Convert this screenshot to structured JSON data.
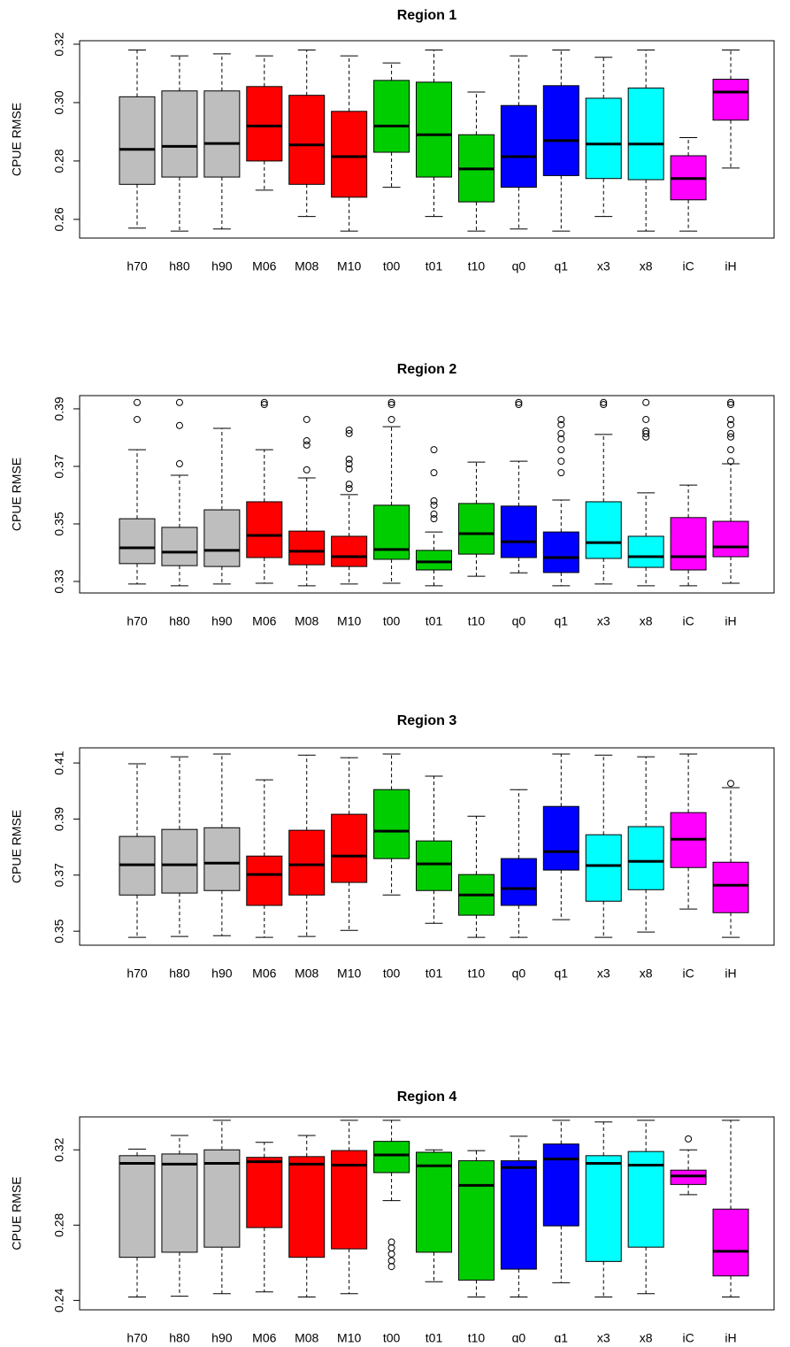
{
  "chart_data": [
    {
      "type": "box",
      "title": "Region 1",
      "ylabel": "CPUE RMSE",
      "categories": [
        "h70",
        "h80",
        "h90",
        "M06",
        "M08",
        "M10",
        "t00",
        "t01",
        "t10",
        "q0",
        "q1",
        "x3",
        "x8",
        "iC",
        "iH"
      ],
      "colors": [
        "#bebebe",
        "#bebebe",
        "#bebebe",
        "#ff0000",
        "#ff0000",
        "#ff0000",
        "#00cd00",
        "#00cd00",
        "#00cd00",
        "#0000ff",
        "#0000ff",
        "#00ffff",
        "#00ffff",
        "#ff00ff",
        "#ff00ff"
      ],
      "ylim": [
        0.2536,
        0.3212
      ],
      "yticks": [
        0.26,
        0.28,
        {
          "value": 0.3,
          "label": "0.30"
        },
        0.32
      ],
      "stats": [
        {
          "whislo": 0.257,
          "q1": 0.272,
          "med": 0.284,
          "q3": 0.302,
          "whishi": 0.318
        },
        {
          "whislo": 0.256,
          "q1": 0.2745,
          "med": 0.285,
          "q3": 0.304,
          "whishi": 0.316
        },
        {
          "whislo": 0.2567,
          "q1": 0.2745,
          "med": 0.286,
          "q3": 0.304,
          "whishi": 0.3167
        },
        {
          "whislo": 0.27,
          "q1": 0.28,
          "med": 0.292,
          "q3": 0.3055,
          "whishi": 0.316
        },
        {
          "whislo": 0.261,
          "q1": 0.272,
          "med": 0.2855,
          "q3": 0.3025,
          "whishi": 0.318
        },
        {
          "whislo": 0.256,
          "q1": 0.2676,
          "med": 0.2815,
          "q3": 0.297,
          "whishi": 0.316
        },
        {
          "whislo": 0.271,
          "q1": 0.283,
          "med": 0.292,
          "q3": 0.3076,
          "whishi": 0.3136
        },
        {
          "whislo": 0.261,
          "q1": 0.2745,
          "med": 0.289,
          "q3": 0.307,
          "whishi": 0.318
        },
        {
          "whislo": 0.256,
          "q1": 0.266,
          "med": 0.2773,
          "q3": 0.289,
          "whishi": 0.3036
        },
        {
          "whislo": 0.2567,
          "q1": 0.271,
          "med": 0.2815,
          "q3": 0.299,
          "whishi": 0.316
        },
        {
          "whislo": 0.256,
          "q1": 0.275,
          "med": 0.287,
          "q3": 0.3058,
          "whishi": 0.318
        },
        {
          "whislo": 0.261,
          "q1": 0.274,
          "med": 0.2858,
          "q3": 0.3015,
          "whishi": 0.3155
        },
        {
          "whislo": 0.256,
          "q1": 0.2736,
          "med": 0.2858,
          "q3": 0.305,
          "whishi": 0.318
        },
        {
          "whislo": 0.256,
          "q1": 0.2667,
          "med": 0.274,
          "q3": 0.2818,
          "whishi": 0.288
        },
        {
          "whislo": 0.2776,
          "q1": 0.294,
          "med": 0.3036,
          "q3": 0.308,
          "whishi": 0.318
        }
      ]
    },
    {
      "type": "box",
      "title": "Region 2",
      "ylabel": "CPUE RMSE",
      "categories": [
        "h70",
        "h80",
        "h90",
        "M06",
        "M08",
        "M10",
        "t00",
        "t01",
        "t10",
        "q0",
        "q1",
        "x3",
        "x8",
        "iC",
        "iH"
      ],
      "colors": [
        "#bebebe",
        "#bebebe",
        "#bebebe",
        "#ff0000",
        "#ff0000",
        "#ff0000",
        "#00cd00",
        "#00cd00",
        "#00cd00",
        "#0000ff",
        "#0000ff",
        "#00ffff",
        "#00ffff",
        "#ff00ff",
        "#ff00ff"
      ],
      "ylim": [
        0.326,
        0.3946
      ],
      "yticks": [
        0.33,
        0.35,
        0.37,
        0.39
      ],
      "stats": [
        {
          "whislo": 0.3291,
          "q1": 0.3362,
          "med": 0.3417,
          "q3": 0.3518,
          "whishi": 0.3758,
          "fliers": [
            0.3922,
            0.3863
          ]
        },
        {
          "whislo": 0.3285,
          "q1": 0.3355,
          "med": 0.3402,
          "q3": 0.3488,
          "whishi": 0.3669,
          "fliers": [
            0.3922,
            0.3842,
            0.3709
          ]
        },
        {
          "whislo": 0.3291,
          "q1": 0.3352,
          "med": 0.3408,
          "q3": 0.3549,
          "whishi": 0.3832
        },
        {
          "whislo": 0.3294,
          "q1": 0.3383,
          "med": 0.346,
          "q3": 0.3577,
          "whishi": 0.3758,
          "fliers": [
            0.3922,
            0.3915
          ]
        },
        {
          "whislo": 0.3285,
          "q1": 0.3358,
          "med": 0.3405,
          "q3": 0.3475,
          "whishi": 0.366,
          "fliers": [
            0.3688,
            0.3774,
            0.3789,
            0.3863
          ]
        },
        {
          "whislo": 0.3291,
          "q1": 0.3352,
          "med": 0.3386,
          "q3": 0.3457,
          "whishi": 0.3602,
          "fliers": [
            0.3814,
            0.3826,
            0.3725,
            0.3709,
            0.3691,
            0.3638,
            0.3623
          ]
        },
        {
          "whislo": 0.3294,
          "q1": 0.3377,
          "med": 0.3411,
          "q3": 0.3565,
          "whishi": 0.3838,
          "fliers": [
            0.3922,
            0.3915,
            0.3863
          ]
        },
        {
          "whislo": 0.3285,
          "q1": 0.334,
          "med": 0.3368,
          "q3": 0.3408,
          "whishi": 0.3472,
          "fliers": [
            0.3758,
            0.3678,
            0.358,
            0.3565,
            0.3534,
            0.3518
          ]
        },
        {
          "whislo": 0.3318,
          "q1": 0.3395,
          "med": 0.3466,
          "q3": 0.3571,
          "whishi": 0.3715
        },
        {
          "whislo": 0.333,
          "q1": 0.3383,
          "med": 0.3438,
          "q3": 0.3562,
          "whishi": 0.3718,
          "fliers": [
            0.3922,
            0.3915
          ]
        },
        {
          "whislo": 0.3285,
          "q1": 0.3331,
          "med": 0.3383,
          "q3": 0.3472,
          "whishi": 0.3583,
          "fliers": [
            0.3863,
            0.3845,
            0.3814,
            0.3795,
            0.3758,
            0.3718,
            0.3678
          ]
        },
        {
          "whislo": 0.3291,
          "q1": 0.338,
          "med": 0.3435,
          "q3": 0.3577,
          "whishi": 0.3811,
          "fliers": [
            0.3922,
            0.3915
          ]
        },
        {
          "whislo": 0.3285,
          "q1": 0.3349,
          "med": 0.3386,
          "q3": 0.3457,
          "whishi": 0.3608,
          "fliers": [
            0.3922,
            0.3863,
            0.3823,
            0.3814,
            0.3802
          ]
        },
        {
          "whislo": 0.3285,
          "q1": 0.334,
          "med": 0.3386,
          "q3": 0.3522,
          "whishi": 0.3635
        },
        {
          "whislo": 0.3294,
          "q1": 0.3386,
          "med": 0.342,
          "q3": 0.3509,
          "whishi": 0.3709,
          "fliers": [
            0.3922,
            0.3915,
            0.3863,
            0.3845,
            0.3814,
            0.3802,
            0.3758,
            0.3718
          ]
        }
      ]
    },
    {
      "type": "box",
      "title": "Region 3",
      "ylabel": "CPUE RMSE",
      "categories": [
        "h70",
        "h80",
        "h90",
        "M06",
        "M08",
        "M10",
        "t00",
        "t01",
        "t10",
        "q0",
        "q1",
        "x3",
        "x8",
        "iC",
        "iH"
      ],
      "colors": [
        "#bebebe",
        "#bebebe",
        "#bebebe",
        "#ff0000",
        "#ff0000",
        "#ff0000",
        "#00cd00",
        "#00cd00",
        "#00cd00",
        "#0000ff",
        "#0000ff",
        "#00ffff",
        "#00ffff",
        "#ff00ff",
        "#ff00ff"
      ],
      "ylim": [
        0.345,
        0.4154
      ],
      "yticks": [
        0.35,
        0.37,
        0.39,
        0.41
      ],
      "stats": [
        {
          "whislo": 0.3478,
          "q1": 0.3629,
          "med": 0.3737,
          "q3": 0.3838,
          "whishi": 0.4097
        },
        {
          "whislo": 0.3481,
          "q1": 0.3636,
          "med": 0.3737,
          "q3": 0.3863,
          "whishi": 0.4122
        },
        {
          "whislo": 0.3484,
          "q1": 0.3645,
          "med": 0.3743,
          "q3": 0.3869,
          "whishi": 0.4132
        },
        {
          "whislo": 0.3478,
          "q1": 0.3592,
          "med": 0.3702,
          "q3": 0.3768,
          "whishi": 0.404
        },
        {
          "whislo": 0.3481,
          "q1": 0.3629,
          "med": 0.3737,
          "q3": 0.386,
          "whishi": 0.4128
        },
        {
          "whislo": 0.3503,
          "q1": 0.3674,
          "med": 0.3768,
          "q3": 0.3917,
          "whishi": 0.4119
        },
        {
          "whislo": 0.3629,
          "q1": 0.3759,
          "med": 0.3857,
          "q3": 0.4005,
          "whishi": 0.4132
        },
        {
          "whislo": 0.3528,
          "q1": 0.3645,
          "med": 0.374,
          "q3": 0.3822,
          "whishi": 0.4053
        },
        {
          "whislo": 0.3478,
          "q1": 0.3557,
          "med": 0.3629,
          "q3": 0.3702,
          "whishi": 0.391
        },
        {
          "whislo": 0.3478,
          "q1": 0.3592,
          "med": 0.3652,
          "q3": 0.3759,
          "whishi": 0.4005
        },
        {
          "whislo": 0.3541,
          "q1": 0.3718,
          "med": 0.3784,
          "q3": 0.3945,
          "whishi": 0.4132
        },
        {
          "whislo": 0.3478,
          "q1": 0.3607,
          "med": 0.3734,
          "q3": 0.3844,
          "whishi": 0.4128
        },
        {
          "whislo": 0.3497,
          "q1": 0.3648,
          "med": 0.3749,
          "q3": 0.3873,
          "whishi": 0.4122
        },
        {
          "whislo": 0.3579,
          "q1": 0.3727,
          "med": 0.3828,
          "q3": 0.3923,
          "whishi": 0.4132
        },
        {
          "whislo": 0.3478,
          "q1": 0.3566,
          "med": 0.3664,
          "q3": 0.3746,
          "whishi": 0.4012,
          "fliers": [
            0.4027
          ]
        }
      ]
    },
    {
      "type": "box",
      "title": "Region 4",
      "ylabel": "CPUE RMSE",
      "categories": [
        "h70",
        "h80",
        "h90",
        "M06",
        "M08",
        "M10",
        "t00",
        "t01",
        "t10",
        "q0",
        "q1",
        "x3",
        "x8",
        "iC",
        "iH"
      ],
      "colors": [
        "#bebebe",
        "#bebebe",
        "#bebebe",
        "#ff0000",
        "#ff0000",
        "#ff0000",
        "#00cd00",
        "#00cd00",
        "#00cd00",
        "#0000ff",
        "#0000ff",
        "#00ffff",
        "#00ffff",
        "#ff00ff",
        "#ff00ff"
      ],
      "ylim": [
        0.235,
        0.3375
      ],
      "yticks": [
        0.24,
        0.28,
        0.32
      ],
      "stats": [
        {
          "whislo": 0.2418,
          "q1": 0.2629,
          "med": 0.3128,
          "q3": 0.3169,
          "whishi": 0.3204
        },
        {
          "whislo": 0.2422,
          "q1": 0.2656,
          "med": 0.3124,
          "q3": 0.3178,
          "whishi": 0.3276
        },
        {
          "whislo": 0.2436,
          "q1": 0.2683,
          "med": 0.3128,
          "q3": 0.32,
          "whishi": 0.3357
        },
        {
          "whislo": 0.2445,
          "q1": 0.2787,
          "med": 0.3137,
          "q3": 0.316,
          "whishi": 0.324
        },
        {
          "whislo": 0.2418,
          "q1": 0.2629,
          "med": 0.3124,
          "q3": 0.3164,
          "whishi": 0.3276
        },
        {
          "whislo": 0.2436,
          "q1": 0.2674,
          "med": 0.3119,
          "q3": 0.3196,
          "whishi": 0.3357
        },
        {
          "whislo": 0.293,
          "q1": 0.3079,
          "med": 0.3173,
          "q3": 0.3245,
          "whishi": 0.3357,
          "fliers": [
            0.271,
            0.2679,
            0.2647,
            0.2611,
            0.258
          ]
        },
        {
          "whislo": 0.2499,
          "q1": 0.2656,
          "med": 0.3115,
          "q3": 0.3187,
          "whishi": 0.32
        },
        {
          "whislo": 0.2418,
          "q1": 0.2508,
          "med": 0.3011,
          "q3": 0.3142,
          "whishi": 0.3196
        },
        {
          "whislo": 0.2418,
          "q1": 0.2566,
          "med": 0.3106,
          "q3": 0.3142,
          "whishi": 0.3272
        },
        {
          "whislo": 0.2494,
          "q1": 0.2796,
          "med": 0.3151,
          "q3": 0.3231,
          "whishi": 0.3357
        },
        {
          "whislo": 0.2418,
          "q1": 0.2607,
          "med": 0.3128,
          "q3": 0.3169,
          "whishi": 0.3348
        },
        {
          "whislo": 0.2436,
          "q1": 0.2683,
          "med": 0.3119,
          "q3": 0.3191,
          "whishi": 0.3357
        },
        {
          "whislo": 0.2962,
          "q1": 0.3016,
          "med": 0.3061,
          "q3": 0.3092,
          "whishi": 0.32,
          "fliers": [
            0.3258
          ]
        },
        {
          "whislo": 0.2418,
          "q1": 0.253,
          "med": 0.2661,
          "q3": 0.2885,
          "whishi": 0.3357
        }
      ]
    }
  ]
}
